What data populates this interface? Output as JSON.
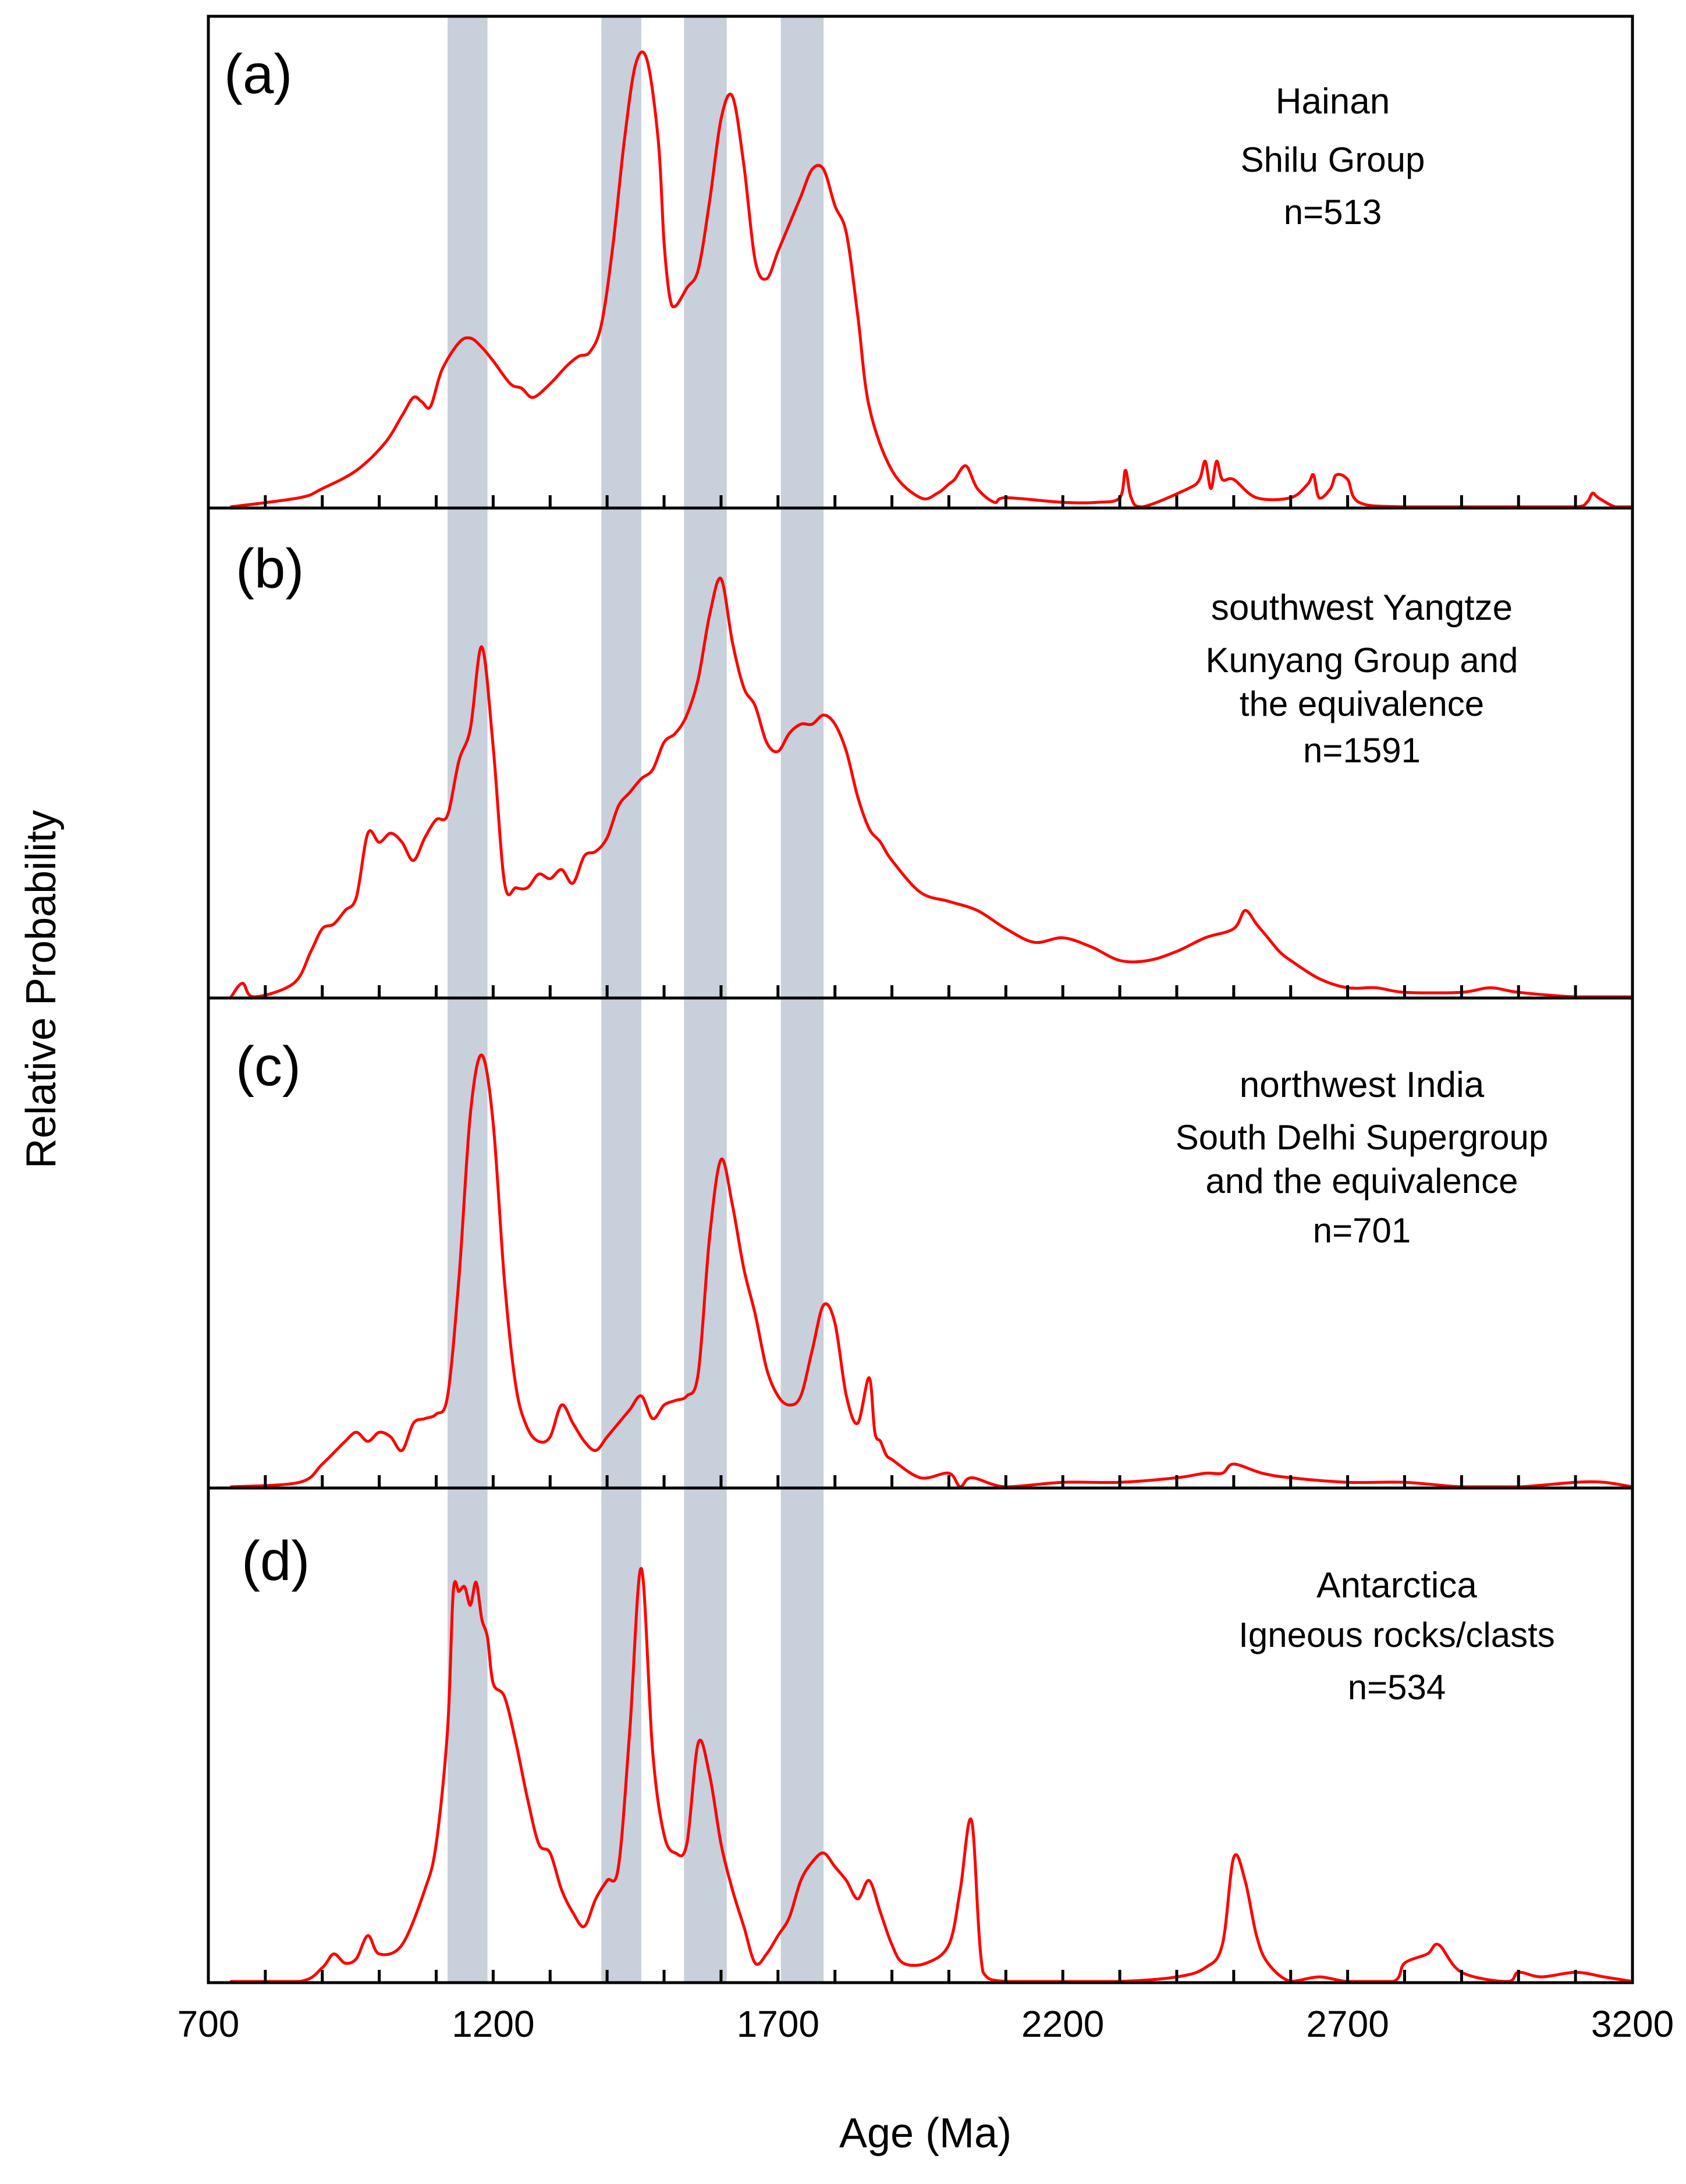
{
  "chart_data": {
    "type": "line",
    "xlabel": "Age (Ma)",
    "ylabel": "Relative Probability",
    "xlim": [
      700,
      3200
    ],
    "xticks": [
      700,
      1200,
      1700,
      2200,
      2700,
      3200
    ],
    "minor_tick_step": 100,
    "highlight_bands": [
      {
        "from": 1120,
        "to": 1190
      },
      {
        "from": 1390,
        "to": 1460
      },
      {
        "from": 1535,
        "to": 1610
      },
      {
        "from": 1705,
        "to": 1780
      }
    ],
    "colors": {
      "curve": "#ff0000",
      "band": "#c7d0db",
      "frame": "#000000"
    },
    "panels": [
      {
        "letter": "(a)",
        "region": "Hainan",
        "group_lines": [
          "Shilu Group"
        ],
        "n": "n=513",
        "series": {
          "name": "Hainan",
          "x": [
            740,
            860,
            900,
            960,
            1010,
            1040,
            1060,
            1075,
            1090,
            1110,
            1140,
            1160,
            1180,
            1200,
            1230,
            1250,
            1270,
            1300,
            1330,
            1350,
            1370,
            1390,
            1410,
            1430,
            1450,
            1470,
            1490,
            1500,
            1510,
            1520,
            1540,
            1560,
            1580,
            1600,
            1620,
            1640,
            1660,
            1680,
            1700,
            1720,
            1740,
            1760,
            1780,
            1800,
            1820,
            1840,
            1860,
            1900,
            1950,
            1980,
            2000,
            2010,
            2030,
            2050,
            2080,
            2100,
            2200,
            2260,
            2300,
            2310,
            2320,
            2340,
            2420,
            2440,
            2450,
            2460,
            2470,
            2480,
            2500,
            2540,
            2600,
            2630,
            2640,
            2650,
            2670,
            2680,
            2700,
            2720,
            2800,
            3000,
            3100,
            3120,
            3130,
            3140,
            3170,
            3200
          ],
          "y": [
            0.0,
            0.02,
            0.04,
            0.08,
            0.14,
            0.2,
            0.24,
            0.23,
            0.22,
            0.3,
            0.36,
            0.37,
            0.35,
            0.32,
            0.27,
            0.26,
            0.24,
            0.27,
            0.31,
            0.33,
            0.34,
            0.4,
            0.57,
            0.8,
            0.97,
            0.98,
            0.8,
            0.58,
            0.46,
            0.44,
            0.48,
            0.52,
            0.67,
            0.85,
            0.9,
            0.75,
            0.54,
            0.5,
            0.56,
            0.62,
            0.68,
            0.74,
            0.74,
            0.66,
            0.6,
            0.42,
            0.22,
            0.08,
            0.02,
            0.03,
            0.05,
            0.06,
            0.09,
            0.04,
            0.01,
            0.02,
            0.01,
            0.01,
            0.02,
            0.08,
            0.02,
            0.0,
            0.04,
            0.06,
            0.1,
            0.04,
            0.1,
            0.06,
            0.06,
            0.02,
            0.02,
            0.05,
            0.07,
            0.02,
            0.04,
            0.07,
            0.06,
            0.01,
            0.0,
            0.0,
            0.0,
            0.01,
            0.03,
            0.02,
            0.0,
            0.0
          ]
        }
      },
      {
        "letter": "(b)",
        "region": "southwest Yangtze",
        "group_lines": [
          "Kunyang Group and",
          "the equivalence"
        ],
        "n": "n=1591",
        "series": {
          "name": "southwest Yangtze",
          "x": [
            740,
            760,
            780,
            850,
            880,
            900,
            920,
            940,
            960,
            980,
            1000,
            1020,
            1040,
            1060,
            1080,
            1100,
            1120,
            1140,
            1160,
            1180,
            1200,
            1220,
            1240,
            1260,
            1280,
            1300,
            1320,
            1340,
            1360,
            1380,
            1400,
            1420,
            1440,
            1460,
            1480,
            1500,
            1520,
            1540,
            1560,
            1580,
            1600,
            1620,
            1640,
            1660,
            1680,
            1700,
            1720,
            1740,
            1760,
            1780,
            1800,
            1820,
            1840,
            1860,
            1880,
            1900,
            1950,
            2000,
            2050,
            2100,
            2150,
            2200,
            2250,
            2300,
            2350,
            2400,
            2450,
            2500,
            2520,
            2540,
            2560,
            2580,
            2600,
            2650,
            2700,
            2750,
            2800,
            2900,
            2950,
            3000,
            3100,
            3200
          ],
          "y": [
            0.0,
            0.03,
            0.0,
            0.03,
            0.1,
            0.15,
            0.16,
            0.19,
            0.22,
            0.36,
            0.34,
            0.36,
            0.34,
            0.3,
            0.35,
            0.39,
            0.4,
            0.52,
            0.59,
            0.77,
            0.55,
            0.25,
            0.24,
            0.24,
            0.27,
            0.26,
            0.28,
            0.25,
            0.31,
            0.32,
            0.35,
            0.42,
            0.45,
            0.48,
            0.5,
            0.56,
            0.58,
            0.62,
            0.7,
            0.84,
            0.92,
            0.78,
            0.68,
            0.64,
            0.56,
            0.54,
            0.58,
            0.6,
            0.6,
            0.62,
            0.6,
            0.54,
            0.44,
            0.37,
            0.34,
            0.3,
            0.23,
            0.21,
            0.19,
            0.15,
            0.12,
            0.13,
            0.11,
            0.08,
            0.08,
            0.1,
            0.13,
            0.15,
            0.19,
            0.16,
            0.13,
            0.1,
            0.08,
            0.04,
            0.02,
            0.02,
            0.01,
            0.01,
            0.02,
            0.01,
            0.0,
            0.0
          ]
        }
      },
      {
        "letter": "(c)",
        "region": "northwest India",
        "group_lines": [
          "South Delhi Supergroup",
          "and the equivalence"
        ],
        "n": "n=701",
        "series": {
          "name": "northwest India",
          "x": [
            740,
            860,
            900,
            940,
            960,
            980,
            1000,
            1020,
            1040,
            1060,
            1080,
            1100,
            1120,
            1140,
            1160,
            1180,
            1200,
            1220,
            1240,
            1260,
            1280,
            1300,
            1320,
            1340,
            1360,
            1380,
            1400,
            1420,
            1440,
            1460,
            1480,
            1500,
            1520,
            1540,
            1560,
            1580,
            1600,
            1620,
            1640,
            1660,
            1680,
            1700,
            1720,
            1740,
            1760,
            1780,
            1800,
            1820,
            1840,
            1860,
            1870,
            1880,
            1890,
            1900,
            1950,
            2000,
            2020,
            2040,
            2100,
            2200,
            2300,
            2400,
            2450,
            2480,
            2500,
            2550,
            2600,
            2700,
            2800,
            2900,
            3000,
            3100,
            3150,
            3200
          ],
          "y": [
            0.0,
            0.01,
            0.05,
            0.1,
            0.12,
            0.1,
            0.12,
            0.11,
            0.08,
            0.14,
            0.15,
            0.16,
            0.2,
            0.46,
            0.82,
            0.95,
            0.8,
            0.45,
            0.22,
            0.13,
            0.1,
            0.11,
            0.18,
            0.14,
            0.1,
            0.08,
            0.11,
            0.14,
            0.17,
            0.2,
            0.15,
            0.18,
            0.19,
            0.2,
            0.25,
            0.55,
            0.72,
            0.62,
            0.48,
            0.38,
            0.26,
            0.2,
            0.18,
            0.2,
            0.3,
            0.4,
            0.36,
            0.2,
            0.14,
            0.24,
            0.12,
            0.1,
            0.07,
            0.06,
            0.02,
            0.03,
            0.0,
            0.02,
            0.0,
            0.01,
            0.01,
            0.02,
            0.03,
            0.03,
            0.05,
            0.03,
            0.02,
            0.01,
            0.01,
            0.0,
            0.0,
            0.01,
            0.01,
            0.0
          ]
        }
      },
      {
        "letter": "(d)",
        "region": "Antarctica",
        "group_lines": [
          "Igneous rocks/clasts"
        ],
        "n": "n=534",
        "series": {
          "name": "Antarctica",
          "x": [
            740,
            860,
            900,
            920,
            940,
            960,
            980,
            1000,
            1040,
            1080,
            1100,
            1120,
            1130,
            1140,
            1150,
            1160,
            1170,
            1180,
            1190,
            1200,
            1220,
            1240,
            1260,
            1280,
            1300,
            1320,
            1340,
            1360,
            1380,
            1400,
            1420,
            1440,
            1460,
            1480,
            1500,
            1520,
            1540,
            1560,
            1580,
            1600,
            1620,
            1640,
            1660,
            1680,
            1700,
            1720,
            1740,
            1760,
            1780,
            1800,
            1820,
            1840,
            1860,
            1880,
            1900,
            1920,
            1960,
            2000,
            2020,
            2040,
            2060,
            2100,
            2200,
            2300,
            2400,
            2450,
            2480,
            2500,
            2520,
            2540,
            2560,
            2600,
            2650,
            2700,
            2780,
            2800,
            2840,
            2860,
            2900,
            2980,
            3000,
            3040,
            3100,
            3150,
            3200
          ],
          "y": [
            0.0,
            0.0,
            0.03,
            0.06,
            0.04,
            0.05,
            0.1,
            0.06,
            0.08,
            0.2,
            0.3,
            0.55,
            0.85,
            0.85,
            0.86,
            0.82,
            0.87,
            0.79,
            0.75,
            0.65,
            0.62,
            0.52,
            0.4,
            0.3,
            0.28,
            0.2,
            0.15,
            0.12,
            0.18,
            0.22,
            0.25,
            0.55,
            0.9,
            0.5,
            0.32,
            0.28,
            0.3,
            0.52,
            0.45,
            0.3,
            0.2,
            0.12,
            0.04,
            0.06,
            0.1,
            0.14,
            0.22,
            0.26,
            0.28,
            0.25,
            0.22,
            0.18,
            0.22,
            0.15,
            0.08,
            0.04,
            0.04,
            0.08,
            0.2,
            0.35,
            0.02,
            0.0,
            0.0,
            0.0,
            0.01,
            0.03,
            0.08,
            0.27,
            0.22,
            0.1,
            0.04,
            0.0,
            0.01,
            0.0,
            0.0,
            0.04,
            0.06,
            0.08,
            0.02,
            0.0,
            0.02,
            0.01,
            0.02,
            0.01,
            0.0
          ]
        }
      }
    ]
  }
}
